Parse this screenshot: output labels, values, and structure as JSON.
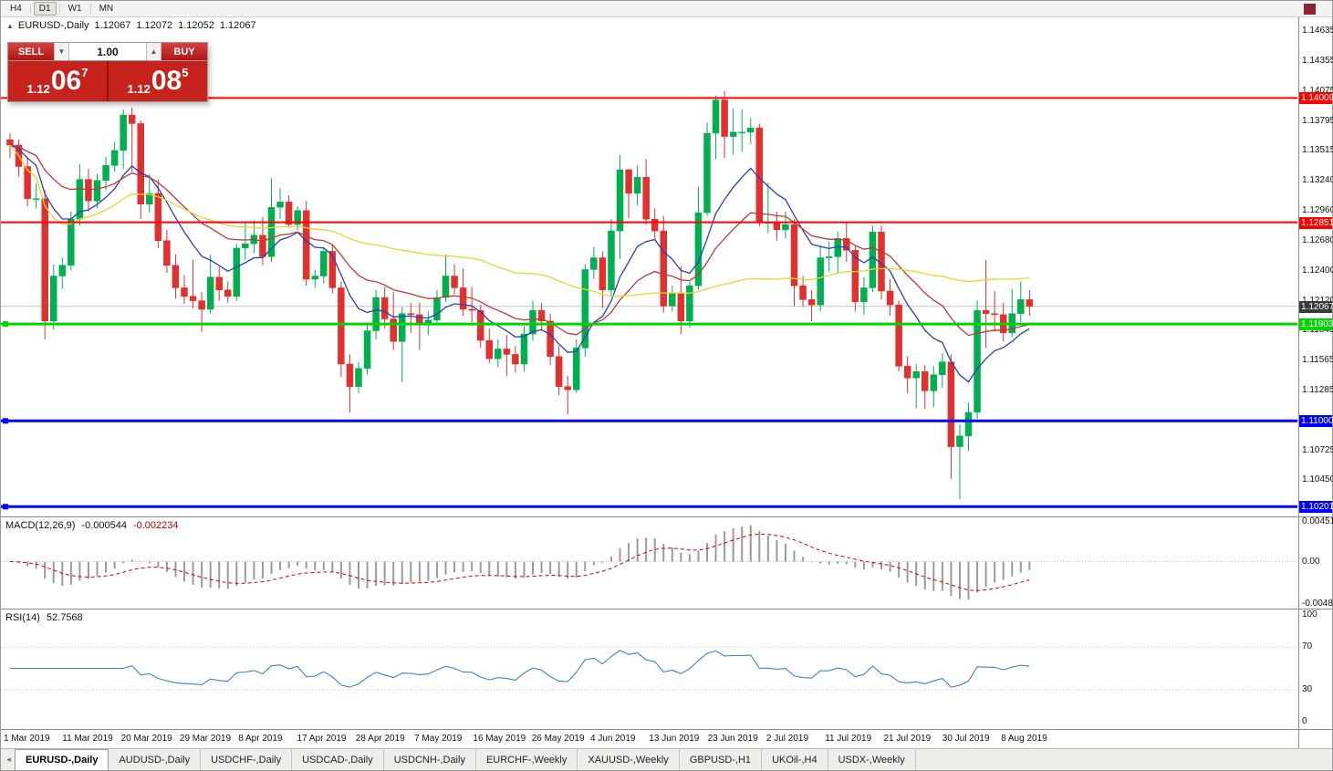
{
  "toolbar": {
    "timeframes": [
      {
        "label": "H4",
        "active": false
      },
      {
        "label": "D1",
        "active": true
      },
      {
        "label": "W1",
        "active": false
      },
      {
        "label": "MN",
        "active": false
      }
    ]
  },
  "trade_panel": {
    "sell_label": "SELL",
    "buy_label": "BUY",
    "volume": "1.00",
    "spin_down_icon": "▼",
    "spin_up_icon": "▲",
    "sell_price_small": "1.12",
    "sell_price_big": "06",
    "sell_price_sup": "7",
    "buy_price_small": "1.12",
    "buy_price_big": "08",
    "buy_price_sup": "5"
  },
  "ohlc": {
    "expand_icon": "▲",
    "symbol": "EURUSD-,Daily",
    "open": "1.12067",
    "high": "1.12072",
    "low": "1.12052",
    "close": "1.12067"
  },
  "chart_data": {
    "type": "candlestick",
    "symbol": "EURUSD-",
    "timeframe": "Daily",
    "price_max": 1.1476,
    "price_min": 1.1011,
    "colors": {
      "up": "#00b050",
      "down": "#e03030"
    },
    "axis_labels": [
      "1.14635",
      "1.14355",
      "1.14075",
      "1.13795",
      "1.13515",
      "1.13240",
      "1.12960",
      "1.12680",
      "1.12400",
      "1.12120",
      "1.11845",
      "1.11565",
      "1.11285",
      "1.10725",
      "1.10450"
    ],
    "levels": [
      {
        "price": 1.14009,
        "label": "1.14009",
        "color": "#ff0000",
        "width": 2,
        "handle": false
      },
      {
        "price": 1.12851,
        "label": "1.12851",
        "color": "#ff0000",
        "width": 2,
        "handle": false
      },
      {
        "price": 1.11903,
        "label": "1.11903",
        "color": "#00d500",
        "width": 3,
        "handle": true
      },
      {
        "price": 1.11,
        "label": "1.11000",
        "color": "#0000ff",
        "width": 3,
        "handle": true
      },
      {
        "price": 1.10201,
        "label": "1.10201",
        "color": "#0000ff",
        "width": 3,
        "handle": true
      }
    ],
    "current": {
      "price": 1.12067,
      "label": "1.12067",
      "badge": "#3a3a3a",
      "line_color": "#c4c4c4"
    },
    "moving_averages": [
      {
        "type": "ema",
        "period": 10,
        "color": "#2840b8"
      },
      {
        "type": "ema",
        "period": 22,
        "color": "#c03838"
      },
      {
        "type": "sma",
        "period": 55,
        "color": "#e8d531"
      }
    ],
    "candles": [
      [
        1.1362,
        1.1368,
        1.1345,
        1.1357
      ],
      [
        1.1357,
        1.1362,
        1.1328,
        1.1337
      ],
      [
        1.1337,
        1.1345,
        1.13,
        1.1307
      ],
      [
        1.1307,
        1.1321,
        1.1298,
        1.1307
      ],
      [
        1.1307,
        1.1315,
        1.1176,
        1.1193
      ],
      [
        1.1193,
        1.1246,
        1.1185,
        1.1235
      ],
      [
        1.1235,
        1.1252,
        1.1223,
        1.1245
      ],
      [
        1.1245,
        1.1295,
        1.124,
        1.1288
      ],
      [
        1.1288,
        1.1339,
        1.1282,
        1.1325
      ],
      [
        1.1325,
        1.1335,
        1.1295,
        1.1305
      ],
      [
        1.1305,
        1.133,
        1.1298,
        1.1324
      ],
      [
        1.1324,
        1.1346,
        1.1315,
        1.1338
      ],
      [
        1.1338,
        1.136,
        1.1332,
        1.1352
      ],
      [
        1.1352,
        1.139,
        1.1335,
        1.1385
      ],
      [
        1.1385,
        1.1392,
        1.1332,
        1.1377
      ],
      [
        1.1377,
        1.138,
        1.1288,
        1.1302
      ],
      [
        1.1302,
        1.133,
        1.1294,
        1.1312
      ],
      [
        1.1312,
        1.1325,
        1.1261,
        1.1268
      ],
      [
        1.1268,
        1.1278,
        1.1238,
        1.1245
      ],
      [
        1.1245,
        1.1255,
        1.1214,
        1.1224
      ],
      [
        1.1224,
        1.1236,
        1.1209,
        1.1216
      ],
      [
        1.1216,
        1.125,
        1.1205,
        1.1212
      ],
      [
        1.1212,
        1.122,
        1.1183,
        1.1204
      ],
      [
        1.1204,
        1.1255,
        1.12,
        1.1234
      ],
      [
        1.1234,
        1.1244,
        1.1212,
        1.1222
      ],
      [
        1.1222,
        1.123,
        1.121,
        1.1216
      ],
      [
        1.1216,
        1.1265,
        1.1212,
        1.1261
      ],
      [
        1.1261,
        1.1285,
        1.125,
        1.1265
      ],
      [
        1.1265,
        1.1287,
        1.1256,
        1.1273
      ],
      [
        1.1273,
        1.129,
        1.1245,
        1.1253
      ],
      [
        1.1253,
        1.1326,
        1.1248,
        1.1299
      ],
      [
        1.1299,
        1.1317,
        1.1288,
        1.1304
      ],
      [
        1.1304,
        1.131,
        1.128,
        1.1283
      ],
      [
        1.1283,
        1.13,
        1.1278,
        1.1296
      ],
      [
        1.1296,
        1.1305,
        1.1226,
        1.1232
      ],
      [
        1.1232,
        1.1241,
        1.1224,
        1.1235
      ],
      [
        1.1235,
        1.1262,
        1.1228,
        1.1258
      ],
      [
        1.1258,
        1.1264,
        1.1219,
        1.1224
      ],
      [
        1.1224,
        1.123,
        1.1141,
        1.1153
      ],
      [
        1.1153,
        1.1162,
        1.1108,
        1.1132
      ],
      [
        1.1132,
        1.1155,
        1.1126,
        1.1149
      ],
      [
        1.1149,
        1.119,
        1.1143,
        1.1184
      ],
      [
        1.1184,
        1.1222,
        1.1176,
        1.1215
      ],
      [
        1.1215,
        1.1225,
        1.1186,
        1.1195
      ],
      [
        1.1195,
        1.122,
        1.1166,
        1.1174
      ],
      [
        1.1174,
        1.1206,
        1.1136,
        1.12
      ],
      [
        1.12,
        1.121,
        1.1182,
        1.1199
      ],
      [
        1.1199,
        1.121,
        1.1166,
        1.119
      ],
      [
        1.119,
        1.1202,
        1.118,
        1.1194
      ],
      [
        1.1194,
        1.1222,
        1.119,
        1.1215
      ],
      [
        1.1215,
        1.1255,
        1.1211,
        1.1235
      ],
      [
        1.1235,
        1.1246,
        1.1218,
        1.1224
      ],
      [
        1.1224,
        1.1242,
        1.1198,
        1.1204
      ],
      [
        1.1204,
        1.1225,
        1.1192,
        1.1203
      ],
      [
        1.1203,
        1.1208,
        1.1168,
        1.1175
      ],
      [
        1.1175,
        1.1186,
        1.1154,
        1.1158
      ],
      [
        1.1158,
        1.1176,
        1.115,
        1.1167
      ],
      [
        1.1167,
        1.118,
        1.1142,
        1.1162
      ],
      [
        1.1162,
        1.117,
        1.1145,
        1.1153
      ],
      [
        1.1153,
        1.1188,
        1.1146,
        1.1181
      ],
      [
        1.1181,
        1.1212,
        1.1175,
        1.1203
      ],
      [
        1.1203,
        1.121,
        1.1184,
        1.1193
      ],
      [
        1.1193,
        1.12,
        1.1152,
        1.116
      ],
      [
        1.116,
        1.117,
        1.1124,
        1.1132
      ],
      [
        1.1132,
        1.1142,
        1.1106,
        1.1129
      ],
      [
        1.1129,
        1.1176,
        1.1126,
        1.1168
      ],
      [
        1.1168,
        1.1246,
        1.116,
        1.1241
      ],
      [
        1.1241,
        1.1262,
        1.1232,
        1.1252
      ],
      [
        1.1252,
        1.1258,
        1.1205,
        1.1222
      ],
      [
        1.1222,
        1.1288,
        1.1216,
        1.1277
      ],
      [
        1.1277,
        1.1348,
        1.1251,
        1.1334
      ],
      [
        1.1334,
        1.1335,
        1.1289,
        1.1312
      ],
      [
        1.1312,
        1.1338,
        1.1301,
        1.1327
      ],
      [
        1.1327,
        1.1344,
        1.1283,
        1.1288
      ],
      [
        1.1288,
        1.1298,
        1.1268,
        1.1277
      ],
      [
        1.1277,
        1.1291,
        1.1201,
        1.1207
      ],
      [
        1.1207,
        1.1226,
        1.1202,
        1.1219
      ],
      [
        1.1219,
        1.1244,
        1.1181,
        1.1193
      ],
      [
        1.1193,
        1.123,
        1.1187,
        1.1226
      ],
      [
        1.1226,
        1.1318,
        1.1222,
        1.1294
      ],
      [
        1.1294,
        1.1378,
        1.1291,
        1.1368
      ],
      [
        1.1368,
        1.1403,
        1.1344,
        1.1399
      ],
      [
        1.1399,
        1.1407,
        1.1345,
        1.1365
      ],
      [
        1.1365,
        1.1391,
        1.1348,
        1.1369
      ],
      [
        1.1369,
        1.139,
        1.1351,
        1.1369
      ],
      [
        1.1369,
        1.1382,
        1.1358,
        1.1373
      ],
      [
        1.1373,
        1.1377,
        1.1281,
        1.1285
      ],
      [
        1.1285,
        1.1322,
        1.1275,
        1.1285
      ],
      [
        1.1285,
        1.1295,
        1.1268,
        1.1278
      ],
      [
        1.1278,
        1.1295,
        1.127,
        1.1283
      ],
      [
        1.1283,
        1.1288,
        1.1207,
        1.1226
      ],
      [
        1.1226,
        1.1235,
        1.1206,
        1.1213
      ],
      [
        1.1213,
        1.1222,
        1.1193,
        1.1208
      ],
      [
        1.1208,
        1.1264,
        1.1202,
        1.1252
      ],
      [
        1.1252,
        1.1267,
        1.1239,
        1.1253
      ],
      [
        1.1253,
        1.1276,
        1.1238,
        1.127
      ],
      [
        1.127,
        1.1285,
        1.1248,
        1.1259
      ],
      [
        1.1259,
        1.1263,
        1.1202,
        1.1211
      ],
      [
        1.1211,
        1.1234,
        1.1199,
        1.1224
      ],
      [
        1.1224,
        1.1282,
        1.122,
        1.1276
      ],
      [
        1.1276,
        1.1282,
        1.1213,
        1.1221
      ],
      [
        1.1221,
        1.1232,
        1.1198,
        1.1208
      ],
      [
        1.1208,
        1.1212,
        1.1146,
        1.1151
      ],
      [
        1.1151,
        1.116,
        1.1126,
        1.114
      ],
      [
        1.114,
        1.1153,
        1.1112,
        1.1146
      ],
      [
        1.1146,
        1.1152,
        1.1111,
        1.1128
      ],
      [
        1.1128,
        1.1151,
        1.1113,
        1.1143
      ],
      [
        1.1143,
        1.1163,
        1.1131,
        1.1155
      ],
      [
        1.1155,
        1.1162,
        1.1046,
        1.1076
      ],
      [
        1.1076,
        1.1097,
        1.1027,
        1.1086
      ],
      [
        1.1086,
        1.1117,
        1.1072,
        1.1108
      ],
      [
        1.1108,
        1.1212,
        1.1102,
        1.1203
      ],
      [
        1.1203,
        1.125,
        1.1168,
        1.12
      ],
      [
        1.12,
        1.1221,
        1.1183,
        1.1199
      ],
      [
        1.1199,
        1.121,
        1.1174,
        1.1182
      ],
      [
        1.1182,
        1.1223,
        1.1178,
        1.12
      ],
      [
        1.12,
        1.123,
        1.1192,
        1.1213
      ],
      [
        1.1213,
        1.1222,
        1.1198,
        1.12067
      ]
    ]
  },
  "macd": {
    "label": "MACD(12,26,9)",
    "value_main": "-0.000544",
    "value_signal": "-0.002234",
    "axis": [
      "0.004517",
      "0.00",
      "-0.004806"
    ],
    "vmax": 0.005,
    "vmin": -0.0053,
    "fast": 12,
    "slow": 26,
    "signal": 9,
    "hist_color": "#9a9a9a",
    "signal_color": "#d40000"
  },
  "rsi": {
    "label": "RSI(14)",
    "value": "52.7568",
    "period": 14,
    "axis": [
      100,
      70,
      30,
      0
    ],
    "levels": [
      70,
      30
    ],
    "color": "#4080c0"
  },
  "date_axis": [
    "1 Mar 2019",
    "11 Mar 2019",
    "20 Mar 2019",
    "29 Mar 2019",
    "8 Apr 2019",
    "17 Apr 2019",
    "28 Apr 2019",
    "7 May 2019",
    "16 May 2019",
    "26 May 2019",
    "4 Jun 2019",
    "13 Jun 2019",
    "23 Jun 2019",
    "2 Jul 2019",
    "11 Jul 2019",
    "21 Jul 2019",
    "30 Jul 2019",
    "8 Aug 2019"
  ],
  "tabs": [
    {
      "label": "EURUSD-,Daily",
      "active": true
    },
    {
      "label": "AUDUSD-,Daily",
      "active": false
    },
    {
      "label": "USDCHF-,Daily",
      "active": false
    },
    {
      "label": "USDCAD-,Daily",
      "active": false
    },
    {
      "label": "USDCNH-,Daily",
      "active": false
    },
    {
      "label": "EURCHF-,Weekly",
      "active": false
    },
    {
      "label": "XAUUSD-,Weekly",
      "active": false
    },
    {
      "label": "GBPUSD-,H1",
      "active": false
    },
    {
      "label": "UKOil-,H4",
      "active": false
    },
    {
      "label": "USDX-,Weekly",
      "active": false
    }
  ],
  "tab_bar": {
    "scroll_left_icon": "◂"
  }
}
